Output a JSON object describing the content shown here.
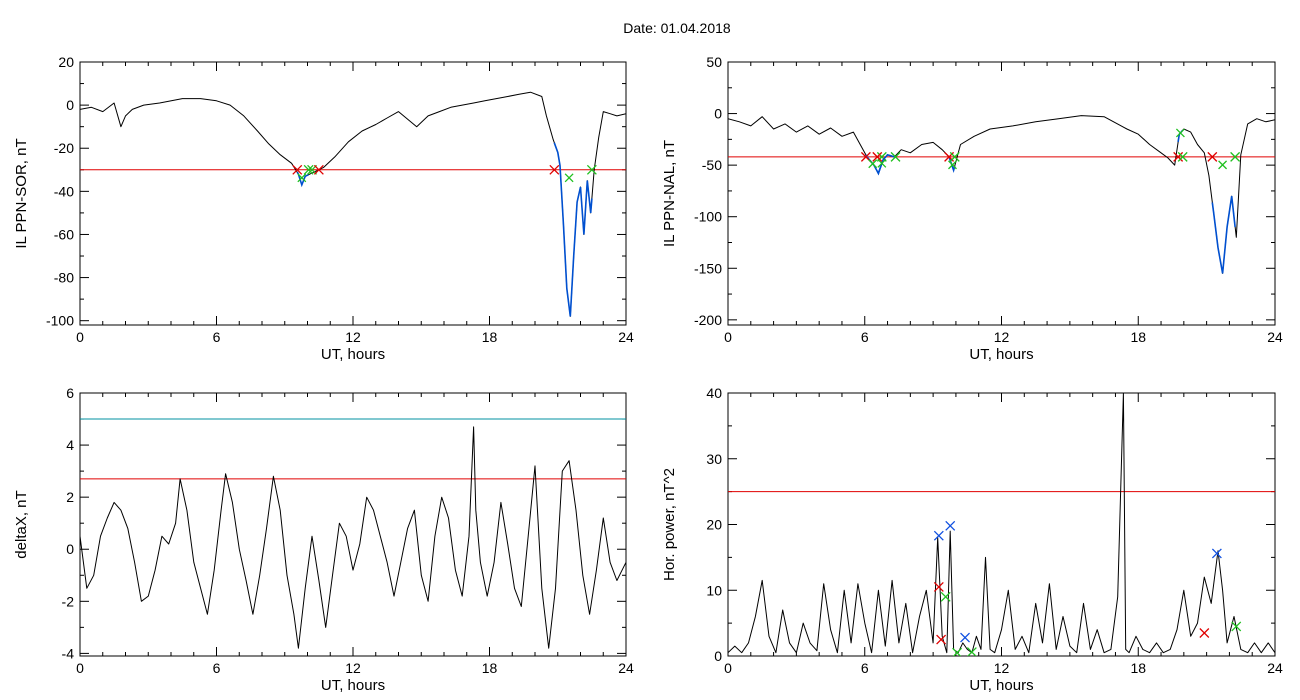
{
  "figure": {
    "title": "Date:  01.04.2018"
  },
  "colors": {
    "trace": "#000000",
    "threshold": "#e00000",
    "cyan_line": "#0090a0",
    "highlight": "#0050d0",
    "start_marker": "#e00000",
    "end_marker": "#20c020",
    "peak_marker": "#1050e0"
  },
  "chart_data": [
    {
      "type": "line",
      "id": "sor",
      "xlabel": "UT, hours",
      "ylabel": "IL PPN-SOR, nT",
      "xlim": [
        0,
        24
      ],
      "ylim": [
        -102,
        20
      ],
      "xticks": [
        0,
        6,
        12,
        18,
        24
      ],
      "xtick_labels": [
        "0",
        "6",
        "12",
        "18",
        "24"
      ],
      "yticks": [
        20,
        0,
        -20,
        -40,
        -60,
        -80,
        -100
      ],
      "ytick_labels": [
        "20",
        "0",
        "-20",
        "-40",
        "-60",
        "-80",
        "-100"
      ],
      "threshold": -30,
      "series": [
        {
          "x": [
            0,
            0.5,
            1,
            1.5,
            1.8,
            2,
            2.3,
            2.8,
            3.5,
            4.5,
            5.3,
            6,
            6.6,
            7.2,
            7.8,
            8.3,
            8.8,
            9.3,
            9.6,
            9.75,
            9.9,
            10.3,
            10.7,
            11.2,
            11.8,
            12.4,
            13,
            13.5,
            14,
            14.8,
            15.3,
            15.8,
            16.3,
            16.8,
            17.3,
            17.8,
            18.3,
            18.8,
            19.3,
            19.8,
            20.3,
            20.5,
            20.8,
            21,
            21.1,
            21.25,
            21.4,
            21.55,
            21.7,
            21.85,
            22,
            22.15,
            22.3,
            22.45,
            22.6,
            22.8,
            23,
            23.3,
            23.6,
            24
          ],
          "y": [
            -2,
            -1,
            -3,
            1,
            -10,
            -5,
            -2,
            0,
            1,
            3,
            3,
            2,
            0,
            -5,
            -12,
            -18,
            -23,
            -27,
            -32,
            -37,
            -33,
            -31,
            -29,
            -24,
            -17,
            -12,
            -9,
            -6,
            -3,
            -10,
            -5,
            -3,
            -1,
            0,
            1,
            2,
            3,
            4,
            5,
            6,
            4,
            -5,
            -16,
            -22,
            -28,
            -55,
            -85,
            -98,
            -70,
            -45,
            -38,
            -60,
            -35,
            -50,
            -30,
            -15,
            -3,
            -4,
            -5,
            -4
          ]
        }
      ],
      "events": [
        {
          "start": 9.55,
          "peak": 9.75,
          "end": 10.05
        },
        {
          "start": 20.85,
          "peak": 21.5,
          "end": 22.5
        }
      ],
      "extra_markers": [
        {
          "x": 10.2,
          "y": -30,
          "color": "end"
        },
        {
          "x": 10.5,
          "y": -30,
          "color": "start"
        }
      ]
    },
    {
      "type": "line",
      "id": "nal",
      "xlabel": "UT, hours",
      "ylabel": "IL PPN-NAL, nT",
      "xlim": [
        0,
        24
      ],
      "ylim": [
        -205,
        50
      ],
      "xticks": [
        0,
        6,
        12,
        18,
        24
      ],
      "xtick_labels": [
        "0",
        "6",
        "12",
        "18",
        "24"
      ],
      "yticks": [
        50,
        0,
        -50,
        -100,
        -150,
        -200
      ],
      "ytick_labels": [
        "50",
        "0",
        "-50",
        "-100",
        "-150",
        "-200"
      ],
      "threshold": -42,
      "series": [
        {
          "x": [
            0,
            0.5,
            1,
            1.5,
            2,
            2.5,
            3,
            3.5,
            4,
            4.5,
            5,
            5.5,
            5.8,
            6.1,
            6.4,
            6.6,
            6.8,
            7,
            7.3,
            7.6,
            8,
            8.5,
            9,
            9.4,
            9.7,
            9.9,
            10.2,
            10.8,
            11.5,
            12.5,
            13.5,
            14.5,
            15.5,
            16.5,
            17.5,
            18,
            18.5,
            19,
            19.3,
            19.6,
            19.8,
            20,
            20.3,
            20.6,
            20.9,
            21.1,
            21.3,
            21.5,
            21.7,
            21.9,
            22.1,
            22.3,
            22.5,
            22.8,
            23.2,
            23.6,
            24
          ],
          "y": [
            -5,
            -8,
            -12,
            -3,
            -15,
            -10,
            -18,
            -12,
            -20,
            -14,
            -22,
            -18,
            -30,
            -42,
            -50,
            -58,
            -45,
            -40,
            -42,
            -35,
            -38,
            -30,
            -28,
            -35,
            -42,
            -55,
            -30,
            -22,
            -15,
            -12,
            -8,
            -5,
            -2,
            -3,
            -15,
            -20,
            -30,
            -38,
            -43,
            -50,
            -20,
            -15,
            -18,
            -30,
            -38,
            -60,
            -95,
            -130,
            -155,
            -110,
            -80,
            -120,
            -40,
            -10,
            -5,
            -8,
            -6
          ]
        }
      ],
      "events": [
        {
          "start": 6.05,
          "peak": 6.35,
          "end": 6.75
        },
        {
          "start": 6.55,
          "peak": 6.75,
          "end": 7.35
        },
        {
          "start": 9.7,
          "peak": 9.85,
          "end": 9.95
        },
        {
          "start": 19.75,
          "peak": 19.85,
          "end": 19.95
        },
        {
          "start": 21.25,
          "peak": 21.7,
          "end": 22.25
        }
      ]
    },
    {
      "type": "line",
      "id": "deltax",
      "xlabel": "UT, hours",
      "ylabel": "deltaX, nT",
      "xlim": [
        0,
        24
      ],
      "ylim": [
        -4.1,
        6
      ],
      "xticks": [
        0,
        6,
        12,
        18,
        24
      ],
      "xtick_labels": [
        "0",
        "6",
        "12",
        "18",
        "24"
      ],
      "yticks": [
        6,
        4,
        2,
        0,
        -2,
        -4
      ],
      "ytick_labels": [
        "6",
        "4",
        "2",
        "0",
        "-2",
        "-4"
      ],
      "threshold": 2.7,
      "upper_line": 5,
      "series": [
        {
          "x": [
            0,
            0.3,
            0.6,
            0.9,
            1.2,
            1.5,
            1.8,
            2.1,
            2.4,
            2.7,
            3,
            3.3,
            3.6,
            3.9,
            4.2,
            4.4,
            4.7,
            5,
            5.3,
            5.6,
            5.9,
            6.2,
            6.4,
            6.7,
            7,
            7.3,
            7.6,
            7.9,
            8.2,
            8.5,
            8.8,
            9.1,
            9.4,
            9.6,
            9.9,
            10.2,
            10.5,
            10.8,
            11.1,
            11.4,
            11.7,
            12,
            12.3,
            12.6,
            12.9,
            13.2,
            13.5,
            13.8,
            14.1,
            14.4,
            14.7,
            15,
            15.3,
            15.6,
            15.9,
            16.2,
            16.5,
            16.8,
            17.1,
            17.3,
            17.4,
            17.6,
            17.9,
            18.2,
            18.5,
            18.8,
            19.1,
            19.4,
            19.7,
            20,
            20.3,
            20.6,
            20.9,
            21.2,
            21.5,
            21.8,
            22.1,
            22.4,
            22.7,
            23,
            23.3,
            23.6,
            24
          ],
          "y": [
            0.5,
            -1.5,
            -1,
            0.5,
            1.2,
            1.8,
            1.5,
            0.8,
            -0.5,
            -2,
            -1.8,
            -0.8,
            0.5,
            0.2,
            1,
            2.7,
            1.5,
            -0.5,
            -1.5,
            -2.5,
            -0.8,
            1.5,
            2.9,
            1.8,
            0,
            -1.2,
            -2.5,
            -1,
            0.8,
            2.8,
            1.5,
            -1,
            -2.5,
            -3.8,
            -1.5,
            0.5,
            -1.2,
            -3,
            -1,
            1,
            0.5,
            -0.8,
            0.2,
            2,
            1.5,
            0.5,
            -0.5,
            -1.8,
            -0.5,
            0.8,
            1.5,
            -1,
            -2,
            0.5,
            2,
            1.2,
            -0.8,
            -1.8,
            0.5,
            4.7,
            1.5,
            -0.5,
            -1.8,
            -0.5,
            1.8,
            0.2,
            -1.5,
            -2.2,
            0.5,
            3.2,
            -1.5,
            -3.8,
            -1.5,
            3,
            3.4,
            1.5,
            -1,
            -2.5,
            -0.8,
            1.2,
            -0.5,
            -1.2,
            -0.5
          ]
        }
      ]
    },
    {
      "type": "line",
      "id": "power",
      "xlabel": "UT, hours",
      "ylabel": "Hor. power, nT^2",
      "xlim": [
        0,
        24
      ],
      "ylim": [
        0,
        40
      ],
      "xticks": [
        0,
        6,
        12,
        18,
        24
      ],
      "xtick_labels": [
        "0",
        "6",
        "12",
        "18",
        "24"
      ],
      "yticks": [
        40,
        30,
        20,
        10,
        0
      ],
      "ytick_labels": [
        "40",
        "30",
        "20",
        "10",
        "0"
      ],
      "threshold": 25,
      "series": [
        {
          "x": [
            0,
            0.3,
            0.6,
            0.9,
            1.2,
            1.5,
            1.8,
            2.1,
            2.4,
            2.7,
            3,
            3.3,
            3.6,
            3.9,
            4.2,
            4.5,
            4.8,
            5.1,
            5.4,
            5.7,
            6,
            6.3,
            6.6,
            6.9,
            7.2,
            7.5,
            7.8,
            8.1,
            8.4,
            8.7,
            9,
            9.2,
            9.4,
            9.6,
            9.75,
            9.9,
            10.1,
            10.3,
            10.5,
            10.7,
            10.9,
            11.1,
            11.3,
            11.5,
            11.7,
            12,
            12.3,
            12.6,
            12.9,
            13.2,
            13.5,
            13.8,
            14.1,
            14.4,
            14.7,
            15,
            15.3,
            15.6,
            15.9,
            16.2,
            16.5,
            16.8,
            17.1,
            17.35,
            17.45,
            17.6,
            17.9,
            18.2,
            18.5,
            18.8,
            19.1,
            19.4,
            19.7,
            20,
            20.3,
            20.6,
            20.9,
            21.2,
            21.5,
            21.7,
            21.9,
            22.2,
            22.5,
            22.8,
            23.1,
            23.4,
            23.7,
            24
          ],
          "y": [
            0.5,
            1.5,
            0.5,
            2,
            6,
            11.5,
            3,
            0.5,
            7,
            2,
            0.5,
            5,
            2,
            0.8,
            11,
            4,
            0.5,
            10,
            2,
            11,
            5,
            0.5,
            10,
            1.5,
            11.5,
            2,
            8,
            0.5,
            6,
            10,
            2,
            18,
            3,
            0.5,
            19,
            1,
            0.5,
            2,
            1,
            0.5,
            3,
            1,
            15,
            1,
            0.5,
            4,
            10,
            1,
            3,
            0.5,
            8,
            2,
            11,
            1,
            6,
            1.5,
            0.5,
            8,
            1,
            4,
            0.5,
            1,
            9,
            40,
            1,
            0.5,
            3,
            1,
            0.5,
            2,
            0.5,
            1,
            4,
            10,
            3,
            5,
            12,
            8,
            16,
            10,
            2,
            6,
            1,
            0.5,
            2,
            0.5,
            2,
            0.5
          ]
        }
      ],
      "markers": [
        {
          "x": 9.25,
          "y": 10.5,
          "color": "start"
        },
        {
          "x": 9.35,
          "y": 2.5,
          "color": "start"
        },
        {
          "x": 9.25,
          "y": 18.3,
          "color": "peak"
        },
        {
          "x": 9.75,
          "y": 19.8,
          "color": "peak"
        },
        {
          "x": 9.55,
          "y": 9,
          "color": "end"
        },
        {
          "x": 10.05,
          "y": 0.5,
          "color": "end"
        },
        {
          "x": 10.4,
          "y": 2.8,
          "color": "peak"
        },
        {
          "x": 10.7,
          "y": 0.6,
          "color": "end"
        },
        {
          "x": 20.9,
          "y": 3.5,
          "color": "start"
        },
        {
          "x": 21.45,
          "y": 15.6,
          "color": "peak"
        },
        {
          "x": 22.3,
          "y": 4.5,
          "color": "end"
        }
      ]
    }
  ]
}
